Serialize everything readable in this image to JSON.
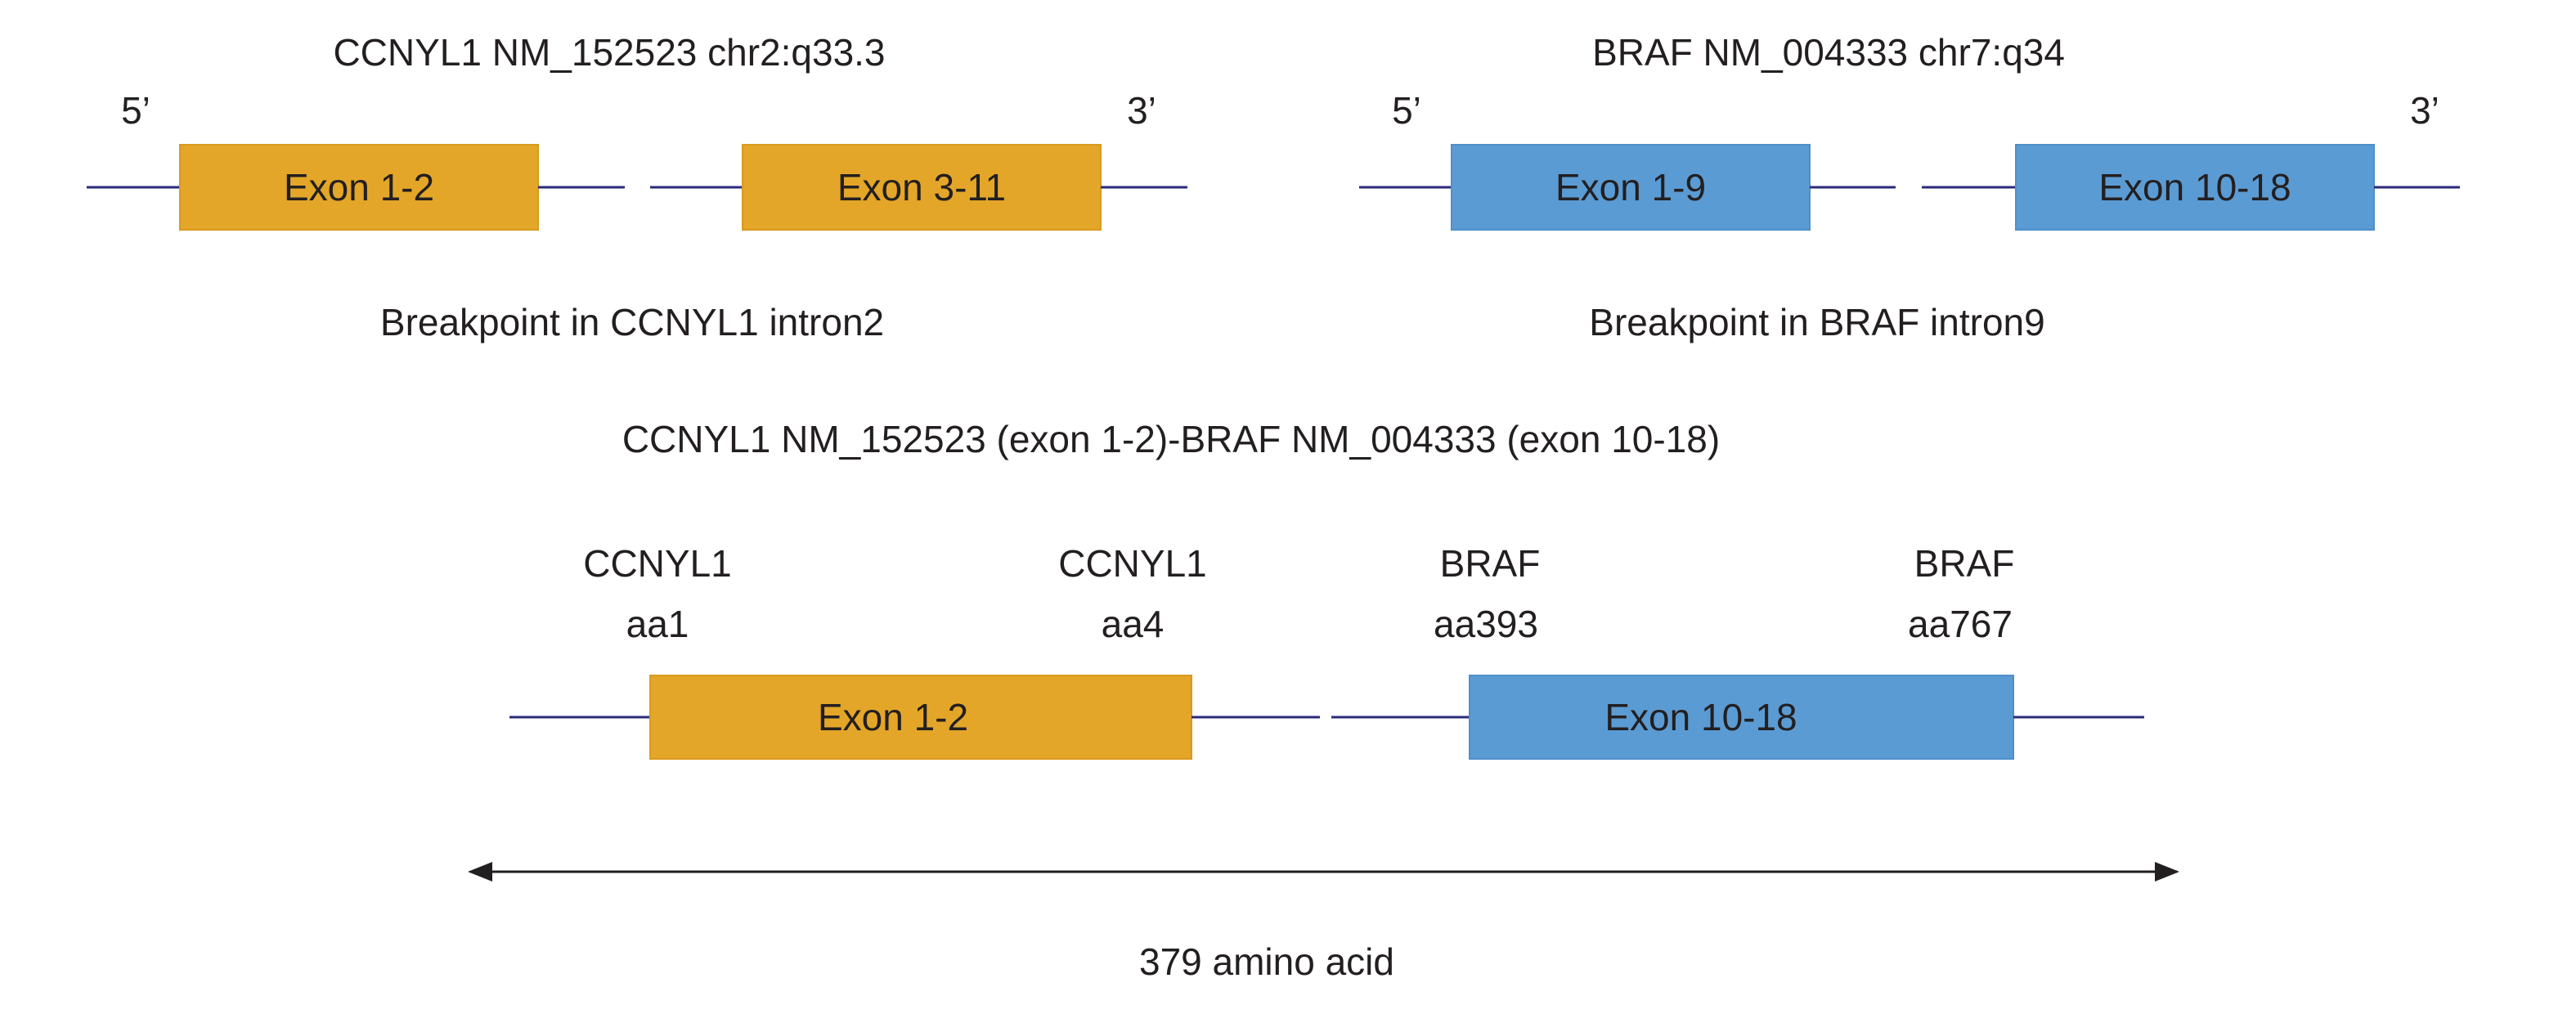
{
  "colors": {
    "ccnyl1_exon": "#E3A629",
    "braf_exon": "#5B9BD3",
    "intron_line": "#2B2B7A",
    "arrow": "#231F20",
    "text": "#231F20"
  },
  "ccnyl1_gene": {
    "title": "CCNYL1 NM_152523 chr2:q33.3",
    "five_prime": "5’",
    "three_prime": "3’",
    "exon_a": "Exon 1-2",
    "exon_b": "Exon 3-11",
    "breakpoint": "Breakpoint in CCNYL1 intron2"
  },
  "braf_gene": {
    "title": "BRAF NM_004333 chr7:q34",
    "five_prime": "5’",
    "three_prime": "3’",
    "exon_a": "Exon 1-9",
    "exon_b": "Exon 10-18",
    "breakpoint": "Breakpoint in BRAF intron9"
  },
  "fusion": {
    "title": "CCNYL1 NM_152523 (exon 1-2)-BRAF NM_004333 (exon 10-18)",
    "labels": [
      {
        "gene": "CCNYL1",
        "aa": "aa1"
      },
      {
        "gene": "CCNYL1",
        "aa": "aa4"
      },
      {
        "gene": "BRAF",
        "aa": "aa393"
      },
      {
        "gene": "BRAF",
        "aa": "aa767"
      }
    ],
    "exon_ccnyl1": "Exon 1-2",
    "exon_braf": "Exon 10-18",
    "length_label": "379 amino acid"
  }
}
